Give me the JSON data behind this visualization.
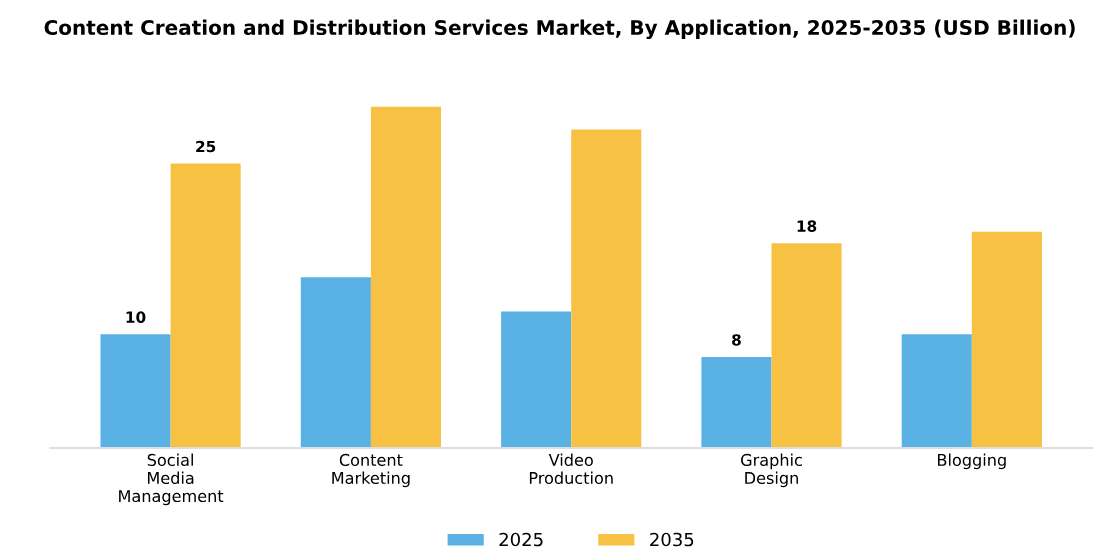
{
  "chart_data": {
    "type": "bar",
    "title": "Content Creation and Distribution Services Market, By Application, 2025-2035 (USD Billion)",
    "categories": [
      "Social\nMedia\nManagement",
      "Content\nMarketing",
      "Video\nProduction",
      "Graphic\nDesign",
      "Blogging"
    ],
    "series": [
      {
        "name": "2025",
        "color": "#5ab1e3",
        "values": [
          10,
          15,
          12,
          8,
          10
        ],
        "value_labels": [
          "10",
          null,
          null,
          "8",
          null
        ]
      },
      {
        "name": "2035",
        "color": "#f7c244",
        "values": [
          25,
          30,
          28,
          18,
          19
        ],
        "value_labels": [
          "25",
          null,
          null,
          "18",
          null
        ]
      }
    ],
    "tick_labels": "x",
    "grid": false,
    "legend": "bottom"
  }
}
